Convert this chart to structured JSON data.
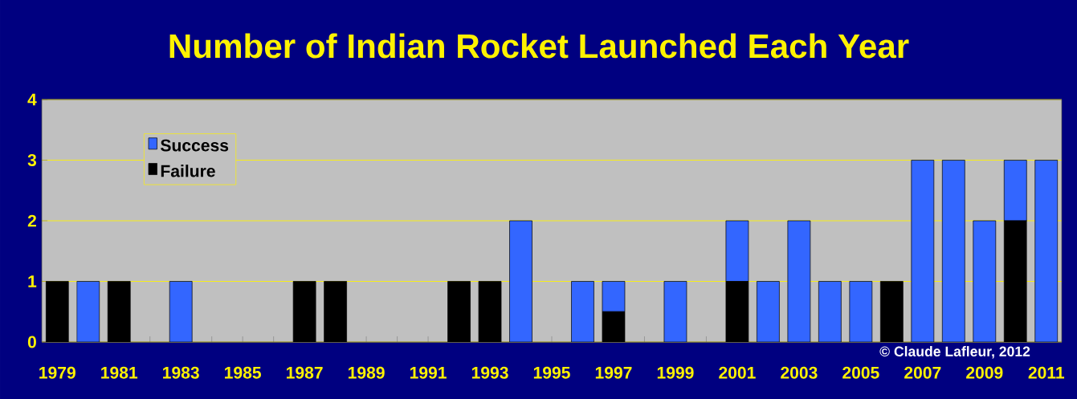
{
  "chart_data": {
    "type": "bar",
    "title": "Number of Indian Rocket Launched Each Year",
    "categories": [
      "1979",
      null,
      "1981",
      null,
      "1983",
      null,
      "1985",
      null,
      "1987",
      null,
      "1989",
      null,
      "1991",
      null,
      "1993",
      null,
      "1995",
      null,
      "1997",
      null,
      "1999",
      null,
      "2001",
      null,
      "2003",
      null,
      "2005",
      null,
      "2007",
      null,
      "2009",
      null,
      "2011"
    ],
    "series": [
      {
        "name": "Failure",
        "color": "#000000",
        "values": [
          1,
          0,
          1,
          0,
          0,
          0,
          0,
          0,
          1,
          1,
          0,
          0,
          0,
          1,
          1,
          0,
          0,
          0,
          0.5,
          0,
          0,
          0,
          1,
          0,
          0,
          0,
          0,
          1,
          0,
          0,
          0,
          2,
          0
        ]
      },
      {
        "name": "Success",
        "color": "#3366ff",
        "values": [
          0,
          1,
          0,
          0,
          1,
          0,
          0,
          0,
          0,
          0,
          0,
          0,
          0,
          0,
          0,
          2,
          0,
          1,
          0.5,
          0,
          1,
          0,
          1,
          1,
          2,
          1,
          1,
          0,
          3,
          3,
          2,
          1,
          3
        ]
      }
    ],
    "stacked": true,
    "ylim": [
      0,
      4
    ],
    "yticks": [
      0,
      1,
      2,
      3,
      4
    ],
    "grid": "y",
    "legend": "top left",
    "annotations": [
      "© Claude Lafleur, 2012"
    ]
  }
}
